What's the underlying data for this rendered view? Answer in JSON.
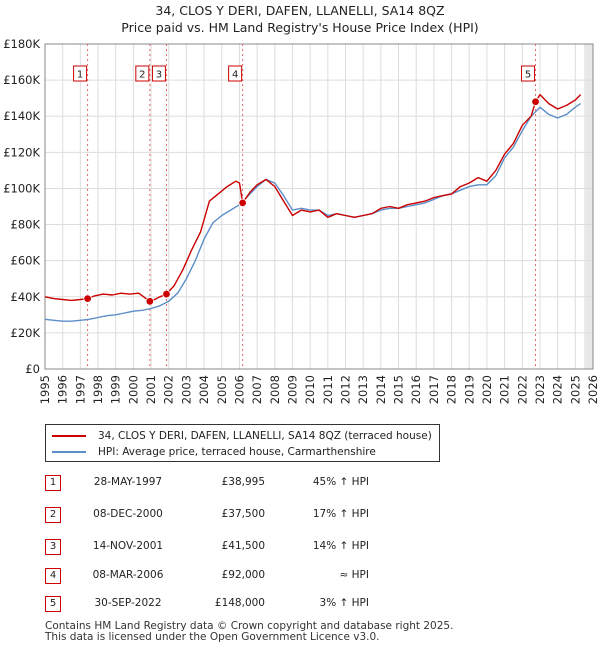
{
  "chart_data": {
    "type": "line",
    "title": "34, CLOS Y DERI, DAFEN, LLANELLI, SA14 8QZ",
    "subtitle": "Price paid vs. HM Land Registry's House Price Index (HPI)",
    "xlim": [
      1995,
      2026
    ],
    "ylim": [
      0,
      180000
    ],
    "x_ticks": [
      1995,
      1996,
      1997,
      1998,
      1999,
      2000,
      2001,
      2002,
      2003,
      2004,
      2005,
      2006,
      2007,
      2008,
      2009,
      2010,
      2011,
      2012,
      2013,
      2014,
      2015,
      2016,
      2017,
      2018,
      2019,
      2020,
      2021,
      2022,
      2023,
      2024,
      2025,
      2026
    ],
    "y_ticks": [
      0,
      20000,
      40000,
      60000,
      80000,
      100000,
      120000,
      140000,
      160000,
      180000
    ],
    "y_tick_labels": [
      "£0",
      "£20K",
      "£40K",
      "£60K",
      "£80K",
      "£100K",
      "£120K",
      "£140K",
      "£160K",
      "£180K"
    ],
    "future_shade_from": 2025.5,
    "series": [
      {
        "name": "34, CLOS Y DERI, DAFEN, LLANELLI, SA14 8QZ (terraced house)",
        "color": "#cc0000",
        "x": [
          1995.0,
          1995.5,
          1996.0,
          1996.5,
          1997.0,
          1997.41,
          1997.8,
          1998.3,
          1998.8,
          1999.3,
          1999.8,
          2000.3,
          2000.93,
          2001.2,
          2001.5,
          2001.87,
          2002.3,
          2002.8,
          2003.3,
          2003.8,
          2004.3,
          2004.8,
          2005.3,
          2005.8,
          2006.0,
          2006.18,
          2006.6,
          2007.0,
          2007.5,
          2008.0,
          2008.5,
          2009.0,
          2009.5,
          2010.0,
          2010.5,
          2011.0,
          2011.5,
          2012.0,
          2012.5,
          2013.0,
          2013.5,
          2014.0,
          2014.5,
          2015.0,
          2015.5,
          2016.0,
          2016.5,
          2017.0,
          2017.5,
          2018.0,
          2018.5,
          2019.0,
          2019.5,
          2020.0,
          2020.5,
          2021.0,
          2021.5,
          2022.0,
          2022.5,
          2022.75,
          2023.0,
          2023.5,
          2024.0,
          2024.5,
          2025.0,
          2025.3
        ],
        "y": [
          40000,
          39000,
          38500,
          38000,
          38500,
          38995,
          40500,
          41500,
          41000,
          42000,
          41500,
          42000,
          37500,
          38500,
          40000,
          41500,
          46000,
          55000,
          66000,
          76000,
          93000,
          97000,
          101000,
          104000,
          103000,
          92000,
          98000,
          102000,
          105000,
          101000,
          93000,
          85000,
          88000,
          87000,
          88000,
          84000,
          86000,
          85000,
          84000,
          85000,
          86000,
          89000,
          90000,
          89000,
          91000,
          92000,
          93000,
          95000,
          96000,
          97000,
          101000,
          103000,
          106000,
          104000,
          110000,
          119000,
          125000,
          135000,
          140000,
          148000,
          152000,
          147000,
          144000,
          146000,
          149000,
          152000
        ]
      },
      {
        "name": "HPI: Average price, terraced house, Carmarthenshire",
        "color": "#5b8ec9",
        "x": [
          1995.0,
          1995.5,
          1996.0,
          1996.5,
          1997.0,
          1997.5,
          1998.0,
          1998.5,
          1999.0,
          1999.5,
          2000.0,
          2000.5,
          2001.0,
          2001.5,
          2002.0,
          2002.5,
          2003.0,
          2003.5,
          2004.0,
          2004.5,
          2005.0,
          2005.5,
          2006.0,
          2006.5,
          2007.0,
          2007.5,
          2008.0,
          2008.5,
          2009.0,
          2009.5,
          2010.0,
          2010.5,
          2011.0,
          2011.5,
          2012.0,
          2012.5,
          2013.0,
          2013.5,
          2014.0,
          2014.5,
          2015.0,
          2015.5,
          2016.0,
          2016.5,
          2017.0,
          2017.5,
          2018.0,
          2018.5,
          2019.0,
          2019.5,
          2020.0,
          2020.5,
          2021.0,
          2021.5,
          2022.0,
          2022.5,
          2023.0,
          2023.5,
          2024.0,
          2024.5,
          2025.0,
          2025.3
        ],
        "y": [
          27500,
          27000,
          26500,
          26500,
          27000,
          27500,
          28500,
          29500,
          30000,
          31000,
          32000,
          32500,
          33500,
          35000,
          37500,
          42000,
          50000,
          60000,
          72000,
          81000,
          85000,
          88000,
          91000,
          96000,
          101000,
          105000,
          103000,
          96000,
          88000,
          89000,
          88000,
          88000,
          85000,
          86000,
          85000,
          84000,
          85000,
          86000,
          88000,
          89000,
          89000,
          90000,
          91000,
          92000,
          94000,
          96000,
          97000,
          99000,
          101000,
          102000,
          102000,
          107000,
          117000,
          123000,
          132000,
          140000,
          145000,
          141000,
          139000,
          141000,
          145000,
          147000
        ]
      }
    ],
    "transactions": [
      {
        "n": "1",
        "date": "28-MAY-1997",
        "price": "£38,995",
        "hpi": "45% ↑ HPI",
        "x": 1997.41,
        "y": 38995
      },
      {
        "n": "2",
        "date": "08-DEC-2000",
        "price": "£37,500",
        "hpi": "17% ↑ HPI",
        "x": 2000.93,
        "y": 37500
      },
      {
        "n": "3",
        "date": "14-NOV-2001",
        "price": "£41,500",
        "hpi": "14% ↑ HPI",
        "x": 2001.87,
        "y": 41500
      },
      {
        "n": "4",
        "date": "08-MAR-2006",
        "price": "£92,000",
        "hpi": "≈ HPI",
        "x": 2006.18,
        "y": 92000
      },
      {
        "n": "5",
        "date": "30-SEP-2022",
        "price": "£148,000",
        "hpi": "3% ↑ HPI",
        "x": 2022.75,
        "y": 148000
      }
    ]
  },
  "legend": {
    "property_label": "34, CLOS Y DERI, DAFEN, LLANELLI, SA14 8QZ (terraced house)",
    "hpi_label": "HPI: Average price, terraced house, Carmarthenshire"
  },
  "footer": {
    "line1": "Contains HM Land Registry data © Crown copyright and database right 2025.",
    "line2": "This data is licensed under the Open Government Licence v3.0."
  }
}
